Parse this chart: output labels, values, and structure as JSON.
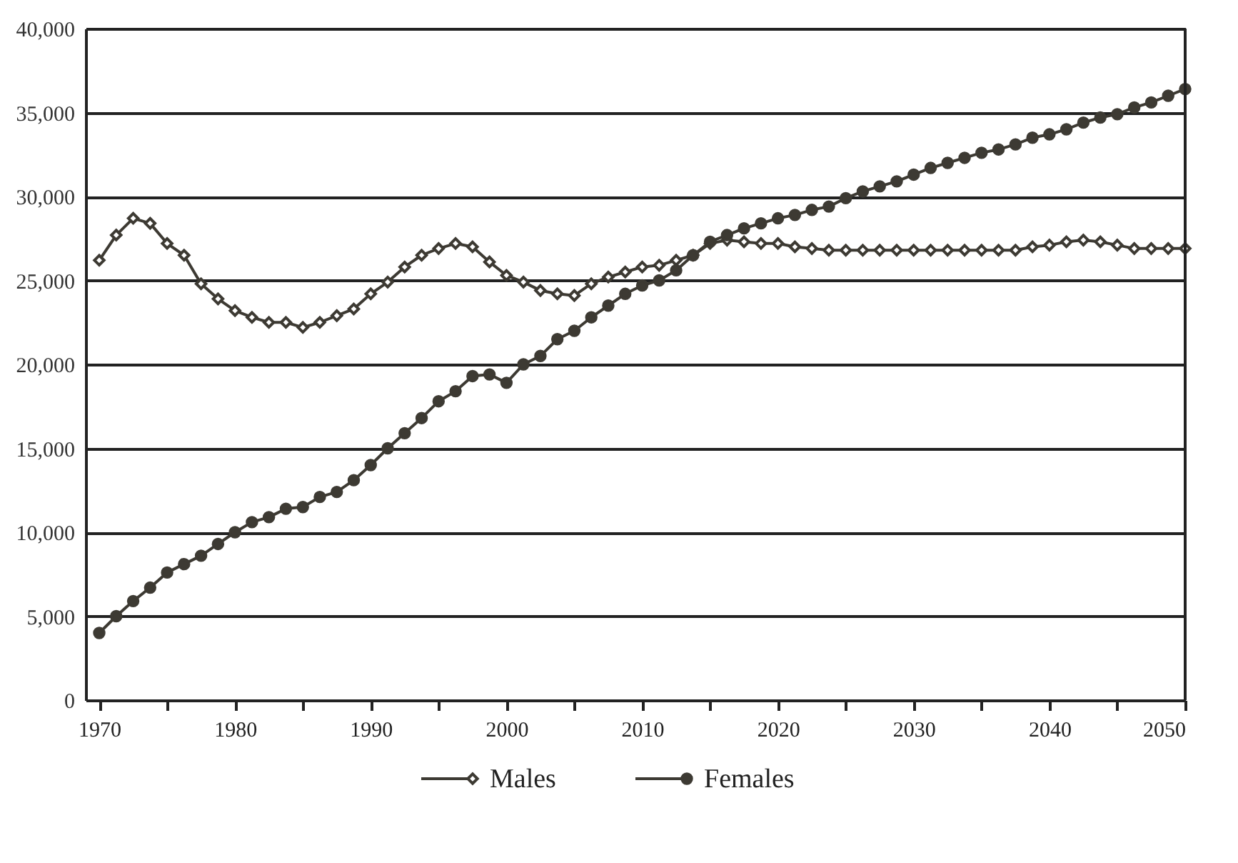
{
  "chart_data": {
    "type": "line",
    "x": [
      1970,
      1971.25,
      1972.5,
      1973.75,
      1975,
      1976.25,
      1977.5,
      1978.75,
      1980,
      1981.25,
      1982.5,
      1983.75,
      1985,
      1986.25,
      1987.5,
      1988.75,
      1990,
      1991.25,
      1992.5,
      1993.75,
      1995,
      1996.25,
      1997.5,
      1998.75,
      2000,
      2001.25,
      2002.5,
      2003.75,
      2005,
      2006.25,
      2007.5,
      2008.75,
      2010,
      2011.25,
      2012.5,
      2013.75,
      2015,
      2016.25,
      2017.5,
      2018.75,
      2020,
      2021.25,
      2022.5,
      2023.75,
      2025,
      2026.25,
      2027.5,
      2028.75,
      2030,
      2031.25,
      2032.5,
      2033.75,
      2035,
      2036.25,
      2037.5,
      2038.75,
      2040,
      2041.25,
      2042.5,
      2043.75,
      2045,
      2046.25,
      2047.5,
      2048.75,
      2050
    ],
    "series": [
      {
        "name": "Males",
        "color": "#3d3a33",
        "marker": "diamond",
        "values": [
          26200,
          27700,
          28700,
          28400,
          27200,
          26500,
          24800,
          23900,
          23200,
          22800,
          22500,
          22500,
          22200,
          22500,
          22900,
          23300,
          24200,
          24900,
          25800,
          26500,
          26900,
          27200,
          27000,
          26100,
          25300,
          24900,
          24400,
          24200,
          24100,
          24800,
          25200,
          25500,
          25800,
          25900,
          26200,
          26500,
          27200,
          27400,
          27300,
          27200,
          27200,
          27000,
          26900,
          26800,
          26800,
          26800,
          26800,
          26800,
          26800,
          26800,
          26800,
          26800,
          26800,
          26800,
          26800,
          27000,
          27100,
          27300,
          27400,
          27300,
          27100,
          26900,
          26900,
          26900,
          26900
        ]
      },
      {
        "name": "Females",
        "color": "#3d3a33",
        "marker": "circle",
        "values": [
          4000,
          5000,
          5900,
          6700,
          7600,
          8100,
          8600,
          9300,
          10000,
          10600,
          10900,
          11400,
          11500,
          12100,
          12400,
          13100,
          14000,
          15000,
          15900,
          16800,
          17800,
          18400,
          19300,
          19400,
          18900,
          20000,
          20500,
          21500,
          22000,
          22800,
          23500,
          24200,
          24700,
          25000,
          25600,
          26500,
          27300,
          27700,
          28100,
          28400,
          28700,
          28900,
          29200,
          29400,
          29900,
          30300,
          30600,
          30900,
          31300,
          31700,
          32000,
          32300,
          32600,
          32800,
          33100,
          33500,
          33700,
          34000,
          34400,
          34700,
          34900,
          35300,
          35600,
          36000,
          36400
        ]
      }
    ],
    "xlim": [
      1969,
      2050
    ],
    "xticks": [
      1970,
      {
        "value": 1975,
        "label": null
      },
      1980,
      {
        "value": 1985,
        "label": null
      },
      1990,
      {
        "value": 1995,
        "label": null
      },
      2000,
      {
        "value": 2005,
        "label": null
      },
      2010,
      {
        "value": 2015,
        "label": null
      },
      2020,
      {
        "value": 2025,
        "label": null
      },
      2030,
      {
        "value": 2035,
        "label": null
      },
      2040,
      {
        "value": 2045,
        "label": null
      },
      2050
    ],
    "ylim": [
      0,
      40000
    ],
    "yticks": [
      0,
      {
        "value": 5000,
        "label": "5,000"
      },
      {
        "value": 10000,
        "label": "10,000"
      },
      {
        "value": 15000,
        "label": "15,000"
      },
      {
        "value": 20000,
        "label": "20,000"
      },
      {
        "value": 25000,
        "label": "25,000"
      },
      {
        "value": 30000,
        "label": "30,000"
      },
      {
        "value": 35000,
        "label": "35,000"
      },
      {
        "value": 40000,
        "label": "40,000"
      }
    ],
    "grid": "y",
    "legend": "bottom",
    "line_style": "solid"
  }
}
